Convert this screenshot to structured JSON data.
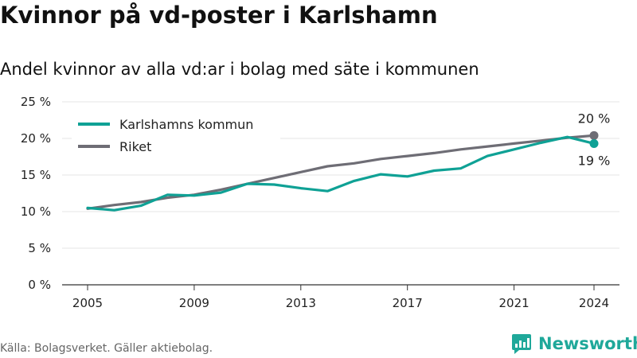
{
  "title": "Kvinnor på vd-poster i Karlshamn",
  "subtitle": "Andel kvinnor av alla vd:ar i bolag med säte i kommunen",
  "source": "Källa: Bolagsverket. Gäller aktiebolag.",
  "brand": {
    "name": "Newsworthy",
    "icon": "newsworthy-logo-icon",
    "color": "#1fa89a"
  },
  "chart_data": {
    "type": "line",
    "x": [
      2005,
      2006,
      2007,
      2008,
      2009,
      2010,
      2011,
      2012,
      2013,
      2014,
      2015,
      2016,
      2017,
      2018,
      2019,
      2020,
      2021,
      2022,
      2023,
      2024
    ],
    "series": [
      {
        "name": "Karlshamns kommun",
        "color": "#0fa195",
        "values": [
          10.5,
          10.2,
          10.8,
          12.3,
          12.2,
          12.6,
          13.8,
          13.7,
          13.2,
          12.8,
          14.2,
          15.1,
          14.8,
          15.6,
          15.9,
          17.6,
          18.5,
          19.4,
          20.2,
          19.3
        ],
        "end_label": "19 %"
      },
      {
        "name": "Riket",
        "color": "#6e6d75",
        "values": [
          10.4,
          10.9,
          11.3,
          11.9,
          12.3,
          13.0,
          13.8,
          14.6,
          15.4,
          16.2,
          16.6,
          17.2,
          17.6,
          18.0,
          18.5,
          18.9,
          19.3,
          19.7,
          20.1,
          20.4
        ],
        "end_label": "20 %"
      }
    ],
    "y_ticks": [
      "0 %",
      "5 %",
      "10 %",
      "15 %",
      "20 %",
      "25 %"
    ],
    "y_tick_values": [
      0,
      5,
      10,
      15,
      20,
      25
    ],
    "x_ticks": [
      2005,
      2009,
      2013,
      2017,
      2021,
      2024
    ],
    "ylim": [
      0,
      25
    ],
    "xlim": [
      2005,
      2024
    ],
    "xlabel": "",
    "ylabel": "",
    "grid": true,
    "legend_position": "top-left"
  }
}
